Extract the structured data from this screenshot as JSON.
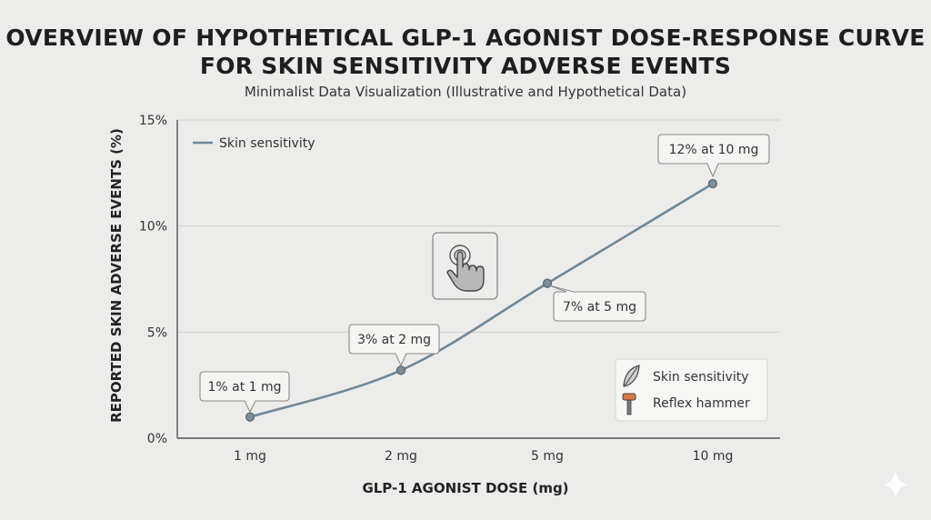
{
  "title": "Overview of Hypothetical GLP-1 Agonist Dose-Response Curve for Skin Sensitivity Adverse Events",
  "subtitle": "Minimalist Data Visualization (Illustrative and Hypothetical Data)",
  "chart_data": {
    "type": "line",
    "title": "Overview of Hypothetical GLP-1 Agonist Dose-Response Curve for Skin Sensitivity Adverse Events",
    "subtitle": "Minimalist Data Visualization (Illustrative and Hypothetical Data)",
    "xlabel": "GLP-1 AGONIST DOSE (mg)",
    "ylabel": "REPORTED SKIN ADVERSE EVENTS (%)",
    "categories": [
      "1 mg",
      "2 mg",
      "5 mg",
      "10 mg"
    ],
    "series": [
      {
        "name": "Skin sensitivity",
        "values": [
          1,
          3.2,
          7.3,
          12
        ]
      }
    ],
    "ylim": [
      0,
      15
    ],
    "yticks": [
      "0%",
      "5%",
      "10%",
      "15%"
    ],
    "ytick_values": [
      0,
      5,
      10,
      15
    ],
    "annotations": [
      {
        "text": "1% at 1 mg",
        "point": 0
      },
      {
        "text": "3% at 2 mg",
        "point": 1
      },
      {
        "text": "7% at 5 mg",
        "point": 2
      },
      {
        "text": "12% at 10 mg",
        "point": 3
      }
    ],
    "grid": "horizontal",
    "legend_top": "top-left",
    "legend_bottom": [
      "Skin sensitivity",
      "Reflex hammer"
    ],
    "legend_bottom_icons": [
      "feather-icon",
      "reflex-hammer-icon"
    ],
    "line_color": "#6f8898",
    "point_color": "#7e8f99",
    "center_icon": "tap-gesture-icon"
  }
}
